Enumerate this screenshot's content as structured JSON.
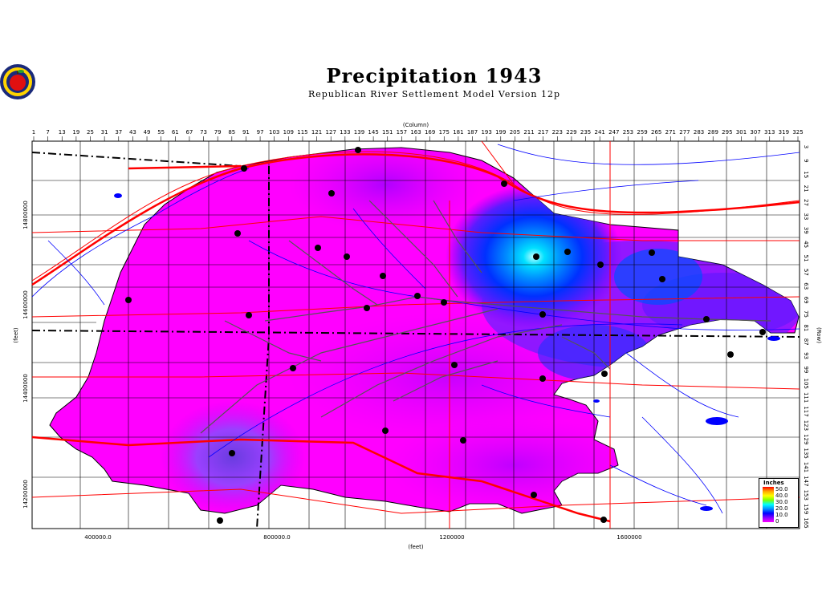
{
  "title": "Precipitation  1943",
  "subtitle": "Republican  River  Settlement  Model  Version  12p",
  "logo": "apple-seal-logo",
  "column_axis_label": "(Column)",
  "row_axis_label": "(Row)",
  "x_axis_label": "(feet)",
  "y_axis_label": "(feet)",
  "column_ticks": [
    "1",
    "7",
    "13",
    "19",
    "25",
    "31",
    "37",
    "43",
    "49",
    "55",
    "61",
    "67",
    "73",
    "79",
    "85",
    "91",
    "97",
    "103",
    "109",
    "115",
    "121",
    "127",
    "133",
    "139",
    "145",
    "151",
    "157",
    "163",
    "169",
    "175",
    "181",
    "187",
    "193",
    "199",
    "205",
    "211",
    "217",
    "223",
    "229",
    "235",
    "241",
    "247",
    "253",
    "259",
    "265",
    "271",
    "277",
    "283",
    "289",
    "295",
    "301",
    "307",
    "313",
    "319",
    "325"
  ],
  "row_ticks": [
    "3",
    "9",
    "15",
    "21",
    "27",
    "33",
    "39",
    "45",
    "51",
    "57",
    "63",
    "69",
    "75",
    "81",
    "87",
    "93",
    "99",
    "105",
    "111",
    "117",
    "123",
    "129",
    "135",
    "141",
    "147",
    "153",
    "159",
    "165"
  ],
  "x_ticks": [
    "400000.0",
    "800000.0",
    "1200000",
    "1600000"
  ],
  "y_ticks": [
    "14800000",
    "14600000",
    "14400000",
    "14200000"
  ],
  "legend": {
    "title": "Inches",
    "entries": [
      "50.0",
      "40.0",
      "30.0",
      "20.0",
      "10.0",
      "0"
    ]
  },
  "colors": {
    "low": "#ff00ff",
    "mid": "#8a2be2",
    "high": "#0000ff",
    "peak": "#00ffff",
    "rivers": "#0000ff",
    "roads": "#ff0000",
    "county_lines": "#000000"
  }
}
